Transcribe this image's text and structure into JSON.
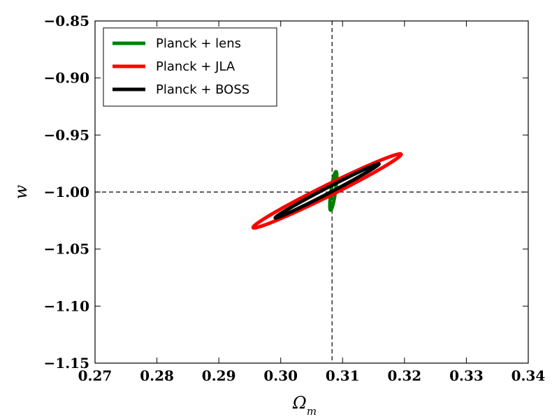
{
  "chart_data": {
    "type": "contour",
    "xlabel_base": "Ω",
    "xlabel_sub": "m",
    "ylabel": "w",
    "xlim": [
      0.27,
      0.34
    ],
    "ylim": [
      -1.15,
      -0.85
    ],
    "x_ticks": [
      "0.27",
      "0.28",
      "0.29",
      "0.30",
      "0.31",
      "0.32",
      "0.33",
      "0.34"
    ],
    "y_ticks": [
      "−1.15",
      "−1.10",
      "−1.05",
      "−1.00",
      "−0.95",
      "−0.90",
      "−0.85"
    ],
    "reference_lines": {
      "x": 0.3083,
      "y": -1.0
    },
    "legend_position": "top-left",
    "series": [
      {
        "name": "Planck + lens",
        "color": "#008000",
        "cx": 0.3085,
        "cy": -0.999,
        "a": 0.0566,
        "b": 0.0051,
        "angle_deg": 83.7
      },
      {
        "name": "Planck + JLA",
        "color": "#ff0000",
        "cx": 0.3075,
        "cy": -0.999,
        "a": 0.2016,
        "b": 0.0152,
        "angle_deg": 32.2
      },
      {
        "name": "Planck + BOSS",
        "color": "#000000",
        "cx": 0.3075,
        "cy": -0.999,
        "a": 0.1433,
        "b": 0.0075,
        "angle_deg": 33.4
      }
    ]
  }
}
